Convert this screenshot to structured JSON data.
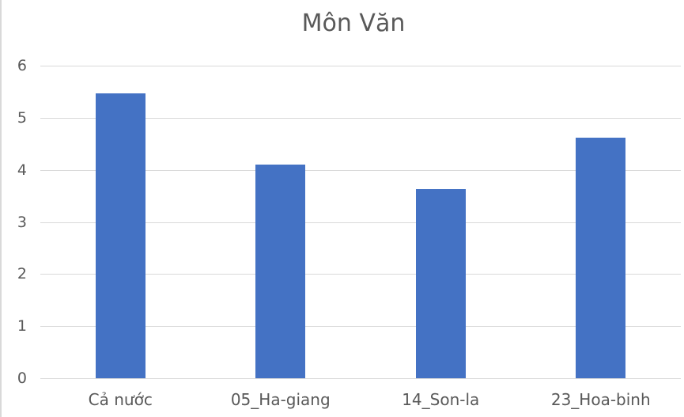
{
  "chart_data": {
    "type": "bar",
    "title": "Môn Văn",
    "categories": [
      "Cả nước",
      "05_Ha-giang",
      "14_Son-la",
      "23_Hoa-binh"
    ],
    "values": [
      5.47,
      4.1,
      3.63,
      4.62
    ],
    "series": [
      {
        "name": "Môn Văn",
        "values": [
          5.47,
          4.1,
          3.63,
          4.62
        ],
        "color": "#4472c4"
      }
    ],
    "xlabel": "",
    "ylabel": "",
    "ylim": [
      0,
      6
    ],
    "yticks": [
      "0",
      "1",
      "2",
      "3",
      "4",
      "5",
      "6"
    ],
    "grid": true,
    "legend": "none"
  },
  "colors": {
    "bar": "#4472c4",
    "grid": "#d9d9d9",
    "text": "#595959"
  }
}
